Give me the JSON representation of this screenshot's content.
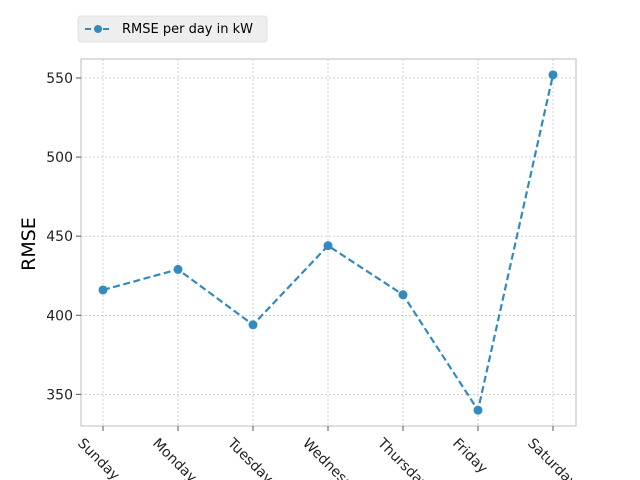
{
  "chart_data": {
    "type": "line",
    "categories": [
      "Sunday",
      "Monday",
      "Tuesday",
      "Wednesday",
      "Thursday",
      "Friday",
      "Saturday"
    ],
    "series": [
      {
        "name": "RMSE per day in kW",
        "values": [
          416,
          429,
          394,
          444,
          413,
          340,
          552
        ]
      }
    ],
    "title": "",
    "xlabel": "",
    "ylabel": "RMSE",
    "ylim": [
      330,
      562
    ],
    "yticks": [
      350,
      400,
      450,
      500,
      550
    ],
    "grid": true,
    "legend": "top-left",
    "line_style": "dashed",
    "marker": "circle",
    "color": "#348ABD"
  }
}
